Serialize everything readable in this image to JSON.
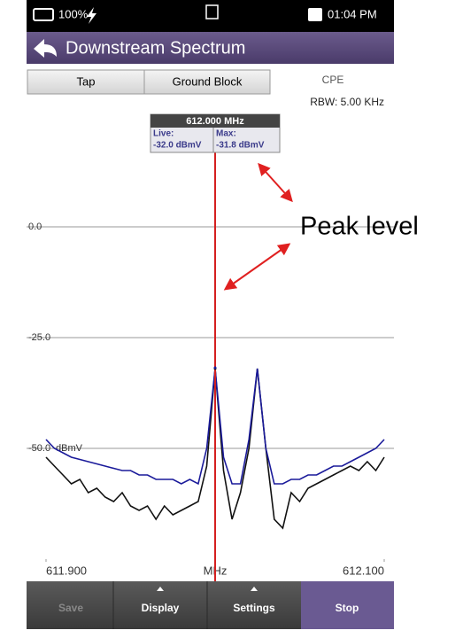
{
  "status_bar": {
    "battery": "100%",
    "time": "01:04 PM"
  },
  "header": {
    "title": "Downstream Spectrum"
  },
  "tabs": [
    "Tap",
    "Ground Block",
    "CPE"
  ],
  "rbw": "RBW: 5.00 KHz",
  "chart_data": {
    "type": "line",
    "x_label": "MHz",
    "y_unit": "dBmV",
    "x": [
      611.9,
      611.905,
      611.91,
      611.915,
      611.92,
      611.925,
      611.93,
      611.935,
      611.94,
      611.945,
      611.95,
      611.955,
      611.96,
      611.965,
      611.97,
      611.975,
      611.98,
      611.985,
      611.99,
      611.995,
      612.0,
      612.005,
      612.01,
      612.015,
      612.02,
      612.025,
      612.03,
      612.035,
      612.04,
      612.045,
      612.05,
      612.055,
      612.06,
      612.065,
      612.07,
      612.075,
      612.08,
      612.085,
      612.09,
      612.095,
      612.1
    ],
    "series": [
      {
        "name": "Live:",
        "color": "#111111",
        "values": [
          -52,
          -54,
          -56,
          -58,
          -57,
          -60,
          -59,
          -61,
          -62,
          -60,
          -63,
          -64,
          -63,
          -66,
          -63,
          -65,
          -64,
          -63,
          -62,
          -54,
          -32,
          -55,
          -66,
          -60,
          -50,
          -32,
          -50,
          -66,
          -68,
          -60,
          -62,
          -59,
          -58,
          -57,
          -56,
          -55,
          -54,
          -55,
          -53,
          -55,
          -52
        ]
      },
      {
        "name": "Max:",
        "color": "#1a1a9a",
        "values": [
          -48,
          -50,
          -51,
          -52,
          -52.5,
          -53,
          -53.5,
          -54,
          -54.5,
          -55,
          -55,
          -56,
          -56,
          -57,
          -57,
          -57,
          -58,
          -57,
          -58,
          -50,
          -32,
          -52,
          -58,
          -58,
          -48,
          -32,
          -50,
          -58,
          -58,
          -57,
          -57,
          -56,
          -56,
          -55,
          -54,
          -54,
          -53,
          -52,
          -51,
          -50,
          -48
        ]
      }
    ],
    "xlim": [
      611.9,
      612.1
    ],
    "xticks": [
      {
        "value": 611.9,
        "label": "611.900"
      },
      {
        "value": 612.1,
        "label": "612.100"
      }
    ],
    "ylim": [
      -75,
      30
    ],
    "yticks": [
      {
        "value": 0,
        "label": "0.0"
      },
      {
        "value": -25,
        "label": "-25.0"
      },
      {
        "value": -50,
        "label": "-50.0"
      }
    ],
    "grid": true,
    "marker": {
      "x": 612.0,
      "x_label": "612.000 MHz",
      "color": "#d42020",
      "values": [
        -32.0,
        -31.8
      ],
      "value_labels": [
        "-32.0 dBmV",
        "-31.8 dBmV"
      ]
    },
    "annotation": "Peak level"
  },
  "toolbar": [
    "Save",
    "Display",
    "Settings",
    "Stop"
  ]
}
